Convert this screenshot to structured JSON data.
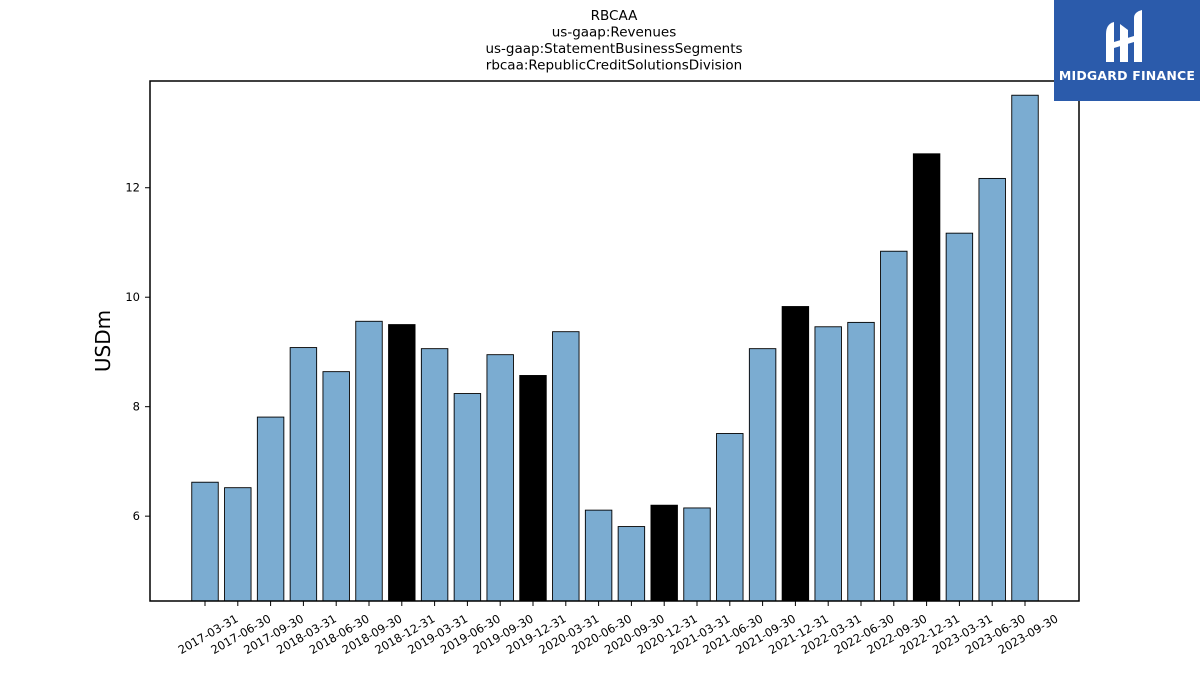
{
  "logo": {
    "text": "MIDGARD FINANCE",
    "background": "#2b5bab"
  },
  "chart_data": {
    "type": "bar",
    "title_lines": [
      "RBCAA",
      "us-gaap:Revenues",
      "us-gaap:StatementBusinessSegments",
      "rbcaa:RepublicCreditSolutionsDivision"
    ],
    "ylabel": "USDm",
    "xlabel": "",
    "ylim": [
      4.45,
      13.95
    ],
    "yticks": [
      6,
      8,
      10,
      12
    ],
    "grid": false,
    "legend": false,
    "colors": {
      "regular": "#7bacd1",
      "highlight": "#000000",
      "edge": "#000000"
    },
    "categories": [
      "2017-03-31",
      "2017-06-30",
      "2017-09-30",
      "2018-03-31",
      "2018-06-30",
      "2018-09-30",
      "2018-12-31",
      "2019-03-31",
      "2019-06-30",
      "2019-09-30",
      "2019-12-31",
      "2020-03-31",
      "2020-06-30",
      "2020-09-30",
      "2020-12-31",
      "2021-03-31",
      "2021-06-30",
      "2021-09-30",
      "2021-12-31",
      "2022-03-31",
      "2022-06-30",
      "2022-09-30",
      "2022-12-31",
      "2023-03-31",
      "2023-06-30",
      "2023-09-30"
    ],
    "values": [
      6.62,
      6.52,
      7.81,
      9.08,
      8.64,
      9.56,
      9.5,
      9.06,
      8.24,
      8.95,
      8.57,
      9.37,
      6.11,
      5.81,
      6.2,
      6.15,
      7.51,
      9.06,
      9.83,
      9.46,
      9.54,
      10.84,
      12.62,
      11.17,
      12.17,
      13.69
    ],
    "highlight": [
      false,
      false,
      false,
      false,
      false,
      false,
      true,
      false,
      false,
      false,
      true,
      false,
      false,
      false,
      true,
      false,
      false,
      false,
      true,
      false,
      false,
      false,
      true,
      false,
      false,
      false
    ]
  }
}
